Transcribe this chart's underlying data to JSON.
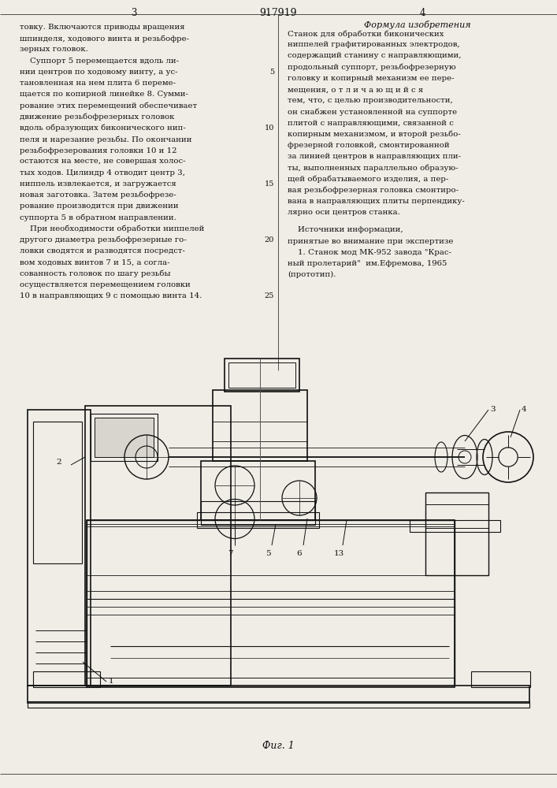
{
  "page_width": 7.07,
  "page_height": 10.0,
  "bg_color": "#f0ede6",
  "text_color": "#111111",
  "title_center": "917919",
  "col_left_num": "3",
  "col_right_num": "4",
  "col_right_header": "Формула изобретения",
  "left_col_lines": [
    "товку. Включаются приводы вращения",
    "шпинделя, ходового винта и резьбофре-",
    "зерных головок.",
    "    Суппорт 5 перемещается вдоль ли-",
    "нии центров по ходовому винту, а ус-",
    "тановленная на нем плита 6 переме-",
    "щается по копирной линейке 8. Сумми-",
    "рование этих перемещений обеспечивает",
    "движение резьбофрезерных головок",
    "вдоль образующих биконического нип-",
    "пеля и нарезание резьбы. По окончании",
    "резьбофрезерования головки 10 и 12",
    "остаются на месте, не совершая холос-",
    "тых ходов. Цилиндр 4 отводит центр 3,",
    "ниппель извлекается, и загружается",
    "новая заготовка. Затем резьбофрезе-",
    "рование производится при движении",
    "суппорта 5 в обратном направлении.",
    "    При необходимости обработки ниппелей",
    "другого диаметра резьбофрезерные го-",
    "ловки сводятся и разводятся посредст-",
    "вом ходовых винтов 7 и 15, а согла-",
    "сованность головок по шагу резьбы",
    "осуществляется перемещением головки",
    "10 в направляющих 9 с помощью винта 14."
  ],
  "right_col_lines": [
    "Станок для обработки биконических",
    "ниппелей графитированных электродов,",
    "содержащий станину с направляющими,",
    "продольный суппорт, резьбофрезерную",
    "головку и копирный механизм ее пере-",
    "мещения, о т л и ч а ю щ и й с я",
    "тем, что, с целью производительности,",
    "он снабжен установленной на суппорте",
    "плитой с направляющими, связанной с",
    "копирным механизмом, и второй резьбо-",
    "фрезерной головкой, смонтированной",
    "за линией центров в направляющих пли-",
    "ты, выполненных параллельно образую-",
    "щей обрабатываемого изделия, а пер-",
    "вая резьбофрезерная головка смонтиро-",
    "вана в направляющих плиты перпендику-",
    "лярно оси центров станка."
  ],
  "sources_lines": [
    "    Источники информации,",
    "принятые во внимание при экспертизе",
    "    1. Станок мод МК-952 завода \"Крас-",
    "ный пролетарий\"  им.Ефремова, 1965",
    "(прототип)."
  ],
  "line_numbers": [
    [
      5,
      4
    ],
    [
      10,
      9
    ],
    [
      15,
      14
    ],
    [
      20,
      19
    ],
    [
      25,
      24
    ]
  ],
  "fig_caption": "Фиг. 1"
}
